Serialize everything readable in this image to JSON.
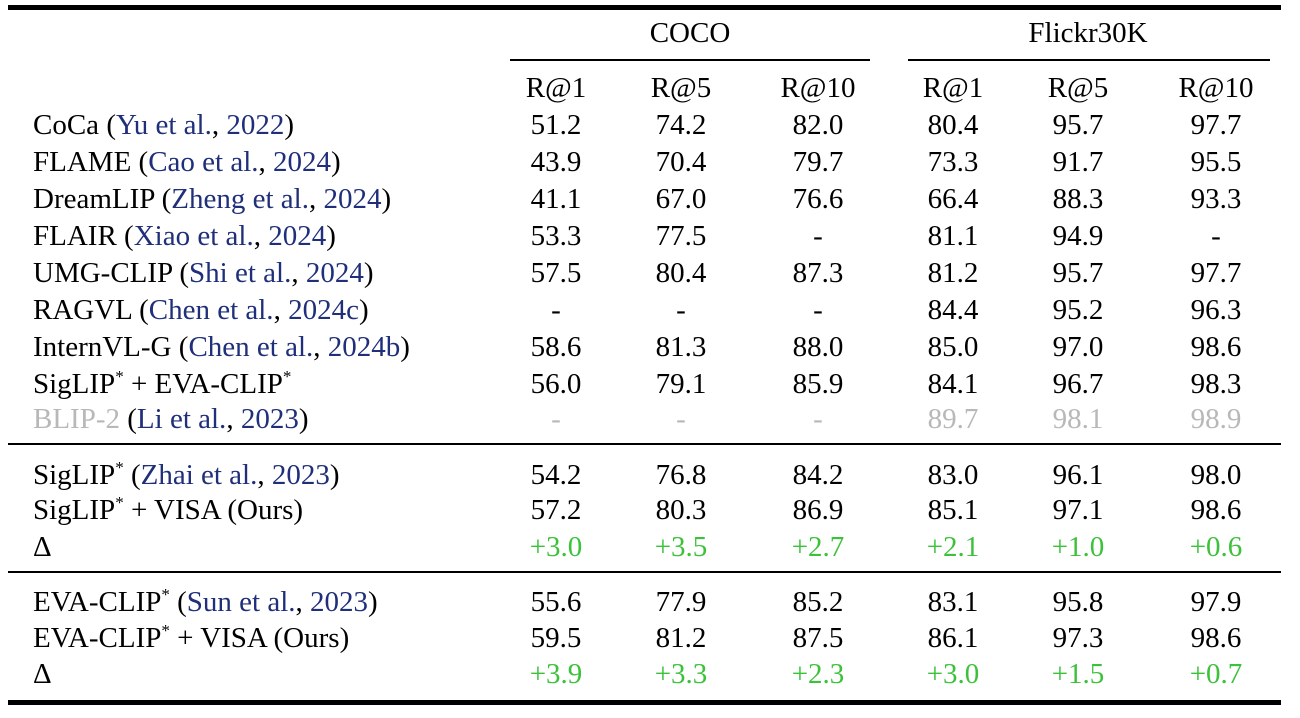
{
  "groups": [
    {
      "label": "COCO"
    },
    {
      "label": "Flickr30K"
    }
  ],
  "metrics": [
    "R@1",
    "R@5",
    "R@10",
    "R@1",
    "R@5",
    "R@10"
  ],
  "rows": [
    {
      "name": "CoCa",
      "sup": "",
      "suffix": "",
      "cite_author": "Yu et al.",
      "cite_year": "2022",
      "values": [
        "51.2",
        "74.2",
        "82.0",
        "80.4",
        "95.7",
        "97.7"
      ],
      "gray": false,
      "delta": false
    },
    {
      "name": "FLAME",
      "sup": "",
      "suffix": "",
      "cite_author": "Cao et al.",
      "cite_year": "2024",
      "values": [
        "43.9",
        "70.4",
        "79.7",
        "73.3",
        "91.7",
        "95.5"
      ],
      "gray": false,
      "delta": false
    },
    {
      "name": "DreamLIP",
      "sup": "",
      "suffix": "",
      "cite_author": "Zheng et al.",
      "cite_year": "2024",
      "values": [
        "41.1",
        "67.0",
        "76.6",
        "66.4",
        "88.3",
        "93.3"
      ],
      "gray": false,
      "delta": false
    },
    {
      "name": "FLAIR ",
      "sup": "",
      "suffix": "",
      "cite_author": "Xiao et al.",
      "cite_year": "2024",
      "values": [
        "53.3",
        "77.5",
        "-",
        "81.1",
        "94.9",
        "-"
      ],
      "gray": false,
      "delta": false
    },
    {
      "name": "UMG-CLIP",
      "sup": "",
      "suffix": "",
      "cite_author": "Shi et al.",
      "cite_year": "2024",
      "values": [
        "57.5",
        "80.4",
        "87.3",
        "81.2",
        "95.7",
        "97.7"
      ],
      "gray": false,
      "delta": false
    },
    {
      "name": "RAGVL",
      "sup": "",
      "suffix": "",
      "cite_author": "Chen et al.",
      "cite_year": "2024c",
      "values": [
        "-",
        "-",
        "-",
        "84.4",
        "95.2",
        "96.3"
      ],
      "gray": false,
      "delta": false
    },
    {
      "name": "InternVL-G",
      "sup": "",
      "suffix": "",
      "cite_author": "Chen et al.",
      "cite_year": "2024b",
      "values": [
        "58.6",
        "81.3",
        "88.0",
        "85.0",
        "97.0",
        "98.6"
      ],
      "gray": false,
      "delta": false
    },
    {
      "name": "SigLIP",
      "sup": "*",
      "suffix": " + EVA-CLIP",
      "suffix_sup": "*",
      "cite_author": "",
      "cite_year": "",
      "values": [
        "56.0",
        "79.1",
        "85.9",
        "84.1",
        "96.7",
        "98.3"
      ],
      "gray": false,
      "delta": false
    },
    {
      "name": "BLIP-2 ",
      "sup": "",
      "suffix": "",
      "cite_author": "Li et al.",
      "cite_year": "2023",
      "values": [
        "-",
        "-",
        "-",
        "89.7",
        "98.1",
        "98.9"
      ],
      "gray": true,
      "delta": false
    },
    {
      "name": "SigLIP",
      "sup": "*",
      "suffix": "",
      "cite_author": "Zhai et al.",
      "cite_year": "2023",
      "values": [
        "54.2",
        "76.8",
        "84.2",
        "83.0",
        "96.1",
        "98.0"
      ],
      "gray": false,
      "delta": false
    },
    {
      "name": "SigLIP",
      "sup": "*",
      "suffix": " + VISA (Ours)",
      "cite_author": "",
      "cite_year": "",
      "values": [
        "57.2",
        "80.3",
        "86.9",
        "85.1",
        "97.1",
        "98.6"
      ],
      "gray": false,
      "delta": false
    },
    {
      "name": "Δ",
      "sup": "",
      "suffix": "",
      "cite_author": "",
      "cite_year": "",
      "values": [
        "+3.0",
        "+3.5",
        "+2.7",
        "+2.1",
        "+1.0",
        "+0.6"
      ],
      "gray": false,
      "delta": true
    },
    {
      "name": "EVA-CLIP",
      "sup": "*",
      "suffix": "",
      "cite_author": "Sun et al.",
      "cite_year": "2023",
      "values": [
        "55.6",
        "77.9",
        "85.2",
        "83.1",
        "95.8",
        "97.9"
      ],
      "gray": false,
      "delta": false
    },
    {
      "name": "EVA-CLIP",
      "sup": "*",
      "suffix": " + VISA (Ours)",
      "cite_author": "",
      "cite_year": "",
      "values": [
        "59.5",
        "81.2",
        "87.5",
        "86.1",
        "97.3",
        "98.6"
      ],
      "gray": false,
      "delta": false
    },
    {
      "name": "Δ",
      "sup": "",
      "suffix": "",
      "cite_author": "",
      "cite_year": "",
      "values": [
        "+3.9",
        "+3.3",
        "+2.3",
        "+3.0",
        "+1.5",
        "+0.7"
      ],
      "gray": false,
      "delta": true
    }
  ],
  "colors": {
    "citation": "#1f2f7a",
    "baseline_gray": "#b8b8b8",
    "delta_green": "#3cc13b"
  }
}
